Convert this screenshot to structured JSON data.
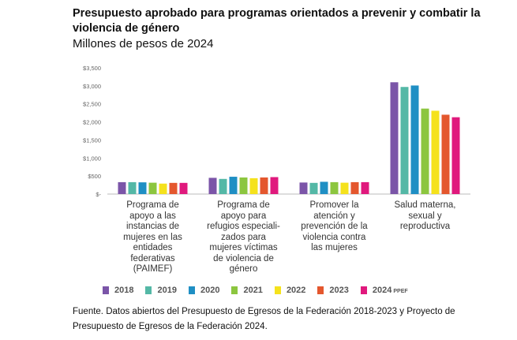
{
  "header": {
    "title": "Presupuesto aprobado para programas orientados a prevenir y combatir la violencia de género",
    "subtitle": "Millones de pesos de 2024"
  },
  "chart_data": {
    "type": "bar",
    "categories": [
      "Programa de\napoyo a las\ninstancias de\nmujeres en las\nentidades\nfederativas\n(PAIMEF)",
      "Programa de\napoyo para\nrefugios especiali-\nzados para\nmujeres víctimas\nde violencia de\ngénero",
      "Promover la\natención y\nprevención de la\nviolencia contra\nlas mujeres",
      "Salud materna,\nsexual y\nreproductiva"
    ],
    "series": [
      {
        "name": "2018",
        "color": "#7b55a8",
        "values": [
          330,
          450,
          320,
          3100
        ]
      },
      {
        "name": "2019",
        "color": "#54b8a6",
        "values": [
          330,
          420,
          310,
          2970
        ]
      },
      {
        "name": "2020",
        "color": "#1f8fc4",
        "values": [
          325,
          480,
          340,
          3010
        ]
      },
      {
        "name": "2021",
        "color": "#8cc63f",
        "values": [
          315,
          460,
          330,
          2370
        ]
      },
      {
        "name": "2022",
        "color": "#f5e21c",
        "values": [
          290,
          440,
          315,
          2310
        ]
      },
      {
        "name": "2023",
        "color": "#e4572e",
        "values": [
          310,
          460,
          330,
          2200
        ]
      },
      {
        "name": "2024",
        "suffix": "PPEF",
        "color": "#e0197d",
        "values": [
          310,
          470,
          330,
          2130
        ]
      }
    ],
    "yticks": [
      "$3,500",
      "$3,000",
      "$2,500",
      "$2,000",
      "$1,500",
      "$1,000",
      "$500",
      "$-"
    ],
    "ylim": [
      0,
      3500
    ],
    "grid": false,
    "legend": "bottom"
  },
  "footer": {
    "source": "Fuente. Datos abiertos del Presupuesto de Egresos de la Federación 2018-2023 y Proyecto de Presupuesto de Egresos de la Federación 2024."
  }
}
